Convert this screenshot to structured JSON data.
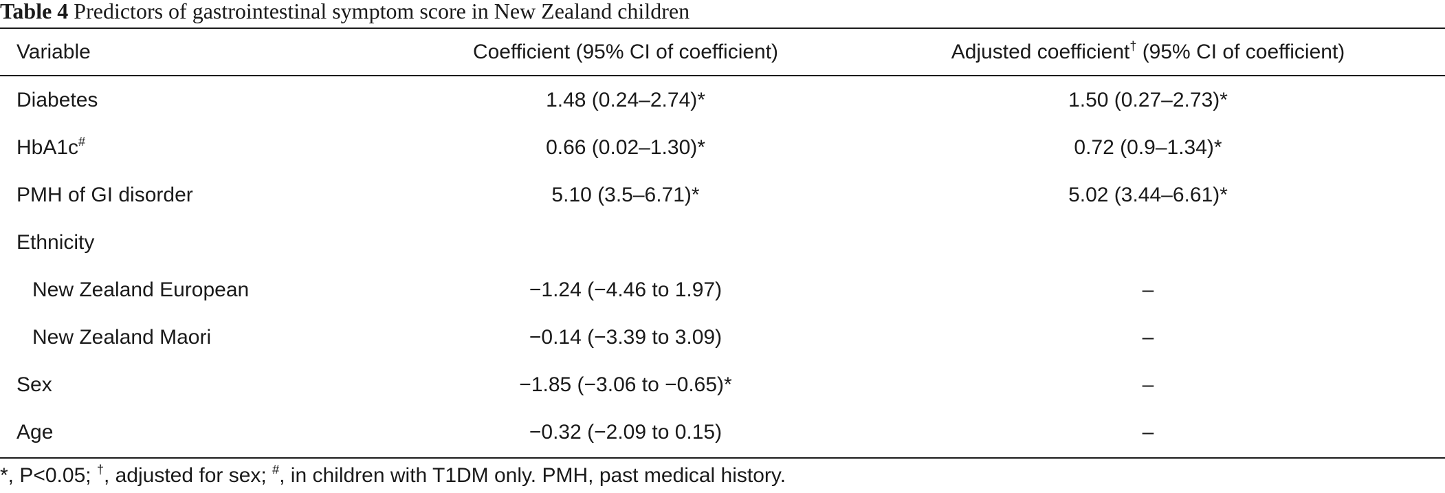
{
  "caption": {
    "label": "Table 4",
    "text": " Predictors of gastrointestinal symptom score in New Zealand children"
  },
  "header": {
    "variable": "Variable",
    "coefficient": "Coefficient (95% CI of coefficient)",
    "adjusted_prefix": "Adjusted coefficient",
    "adjusted_mark": "†",
    "adjusted_suffix": " (95% CI of coefficient)"
  },
  "rows": [
    {
      "variable": "Diabetes",
      "mark": "",
      "coefficient": "1.48 (0.24–2.74)*",
      "adjusted": "1.50 (0.27–2.73)*"
    },
    {
      "variable": "HbA1c",
      "mark": "#",
      "coefficient": "0.66 (0.02–1.30)*",
      "adjusted": "0.72 (0.9–1.34)*"
    },
    {
      "variable": "PMH of GI disorder",
      "mark": "",
      "coefficient": "5.10 (3.5–6.71)*",
      "adjusted": "5.02 (3.44–6.61)*"
    },
    {
      "variable": "Ethnicity",
      "mark": "",
      "coefficient": "",
      "adjusted": ""
    },
    {
      "variable": "New Zealand European",
      "mark": "",
      "coefficient": "−1.24 (−4.46 to 1.97)",
      "adjusted": "–"
    },
    {
      "variable": "New Zealand Maori",
      "mark": "",
      "coefficient": "−0.14 (−3.39 to 3.09)",
      "adjusted": "–"
    },
    {
      "variable": "Sex",
      "mark": "",
      "coefficient": "−1.85 (−3.06 to −0.65)*",
      "adjusted": "–"
    },
    {
      "variable": "Age",
      "mark": "",
      "coefficient": "−0.32 (−2.09 to 0.15)",
      "adjusted": "–"
    }
  ],
  "footnote": {
    "p1": "*, P<0.05; ",
    "m1": "†",
    "p2": ", adjusted for sex; ",
    "m2": "#",
    "p3": ", in children with T1DM only. PMH, past medical history."
  }
}
